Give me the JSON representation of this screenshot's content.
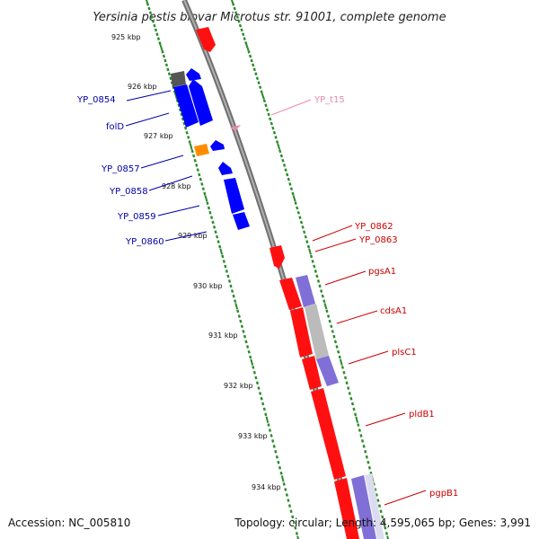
{
  "title": "Yersinia pestis biovar Microtus str. 91001, complete genome",
  "footer": {
    "accession": "Accession: NC_005810",
    "summary": "Topology: circular; Length: 4,595,065 bp; Genes: 3,991"
  },
  "colors": {
    "backbone": "#8a8a8a",
    "tick_ring": "#2a8a2a",
    "forward_label": "#cc0000",
    "reverse_label": "#0000aa",
    "trna_label": "#e88aaa",
    "forward_cds": "#ff1010",
    "reverse_cds": "#0000ff",
    "rna_feature": "#7f6fd6",
    "grey_feature": "#bbbbbb",
    "orange_feature": "#ff8c00",
    "dark_feature": "#555555"
  },
  "ticks": [
    "925 kbp",
    "926 kbp",
    "927 kbp",
    "928 kbp",
    "929 kbp",
    "930 kbp",
    "931 kbp",
    "932 kbp",
    "933 kbp",
    "934 kbp"
  ],
  "labels_reverse": [
    "YP_0854",
    "folD",
    "YP_0857",
    "YP_0858",
    "YP_0859",
    "YP_0860"
  ],
  "labels_forward": [
    "YP_0862",
    "YP_0863",
    "pgsA1",
    "cdsA1",
    "plsC1",
    "pldB1",
    "pgpB1"
  ],
  "labels_trna": [
    "YP_t15"
  ]
}
